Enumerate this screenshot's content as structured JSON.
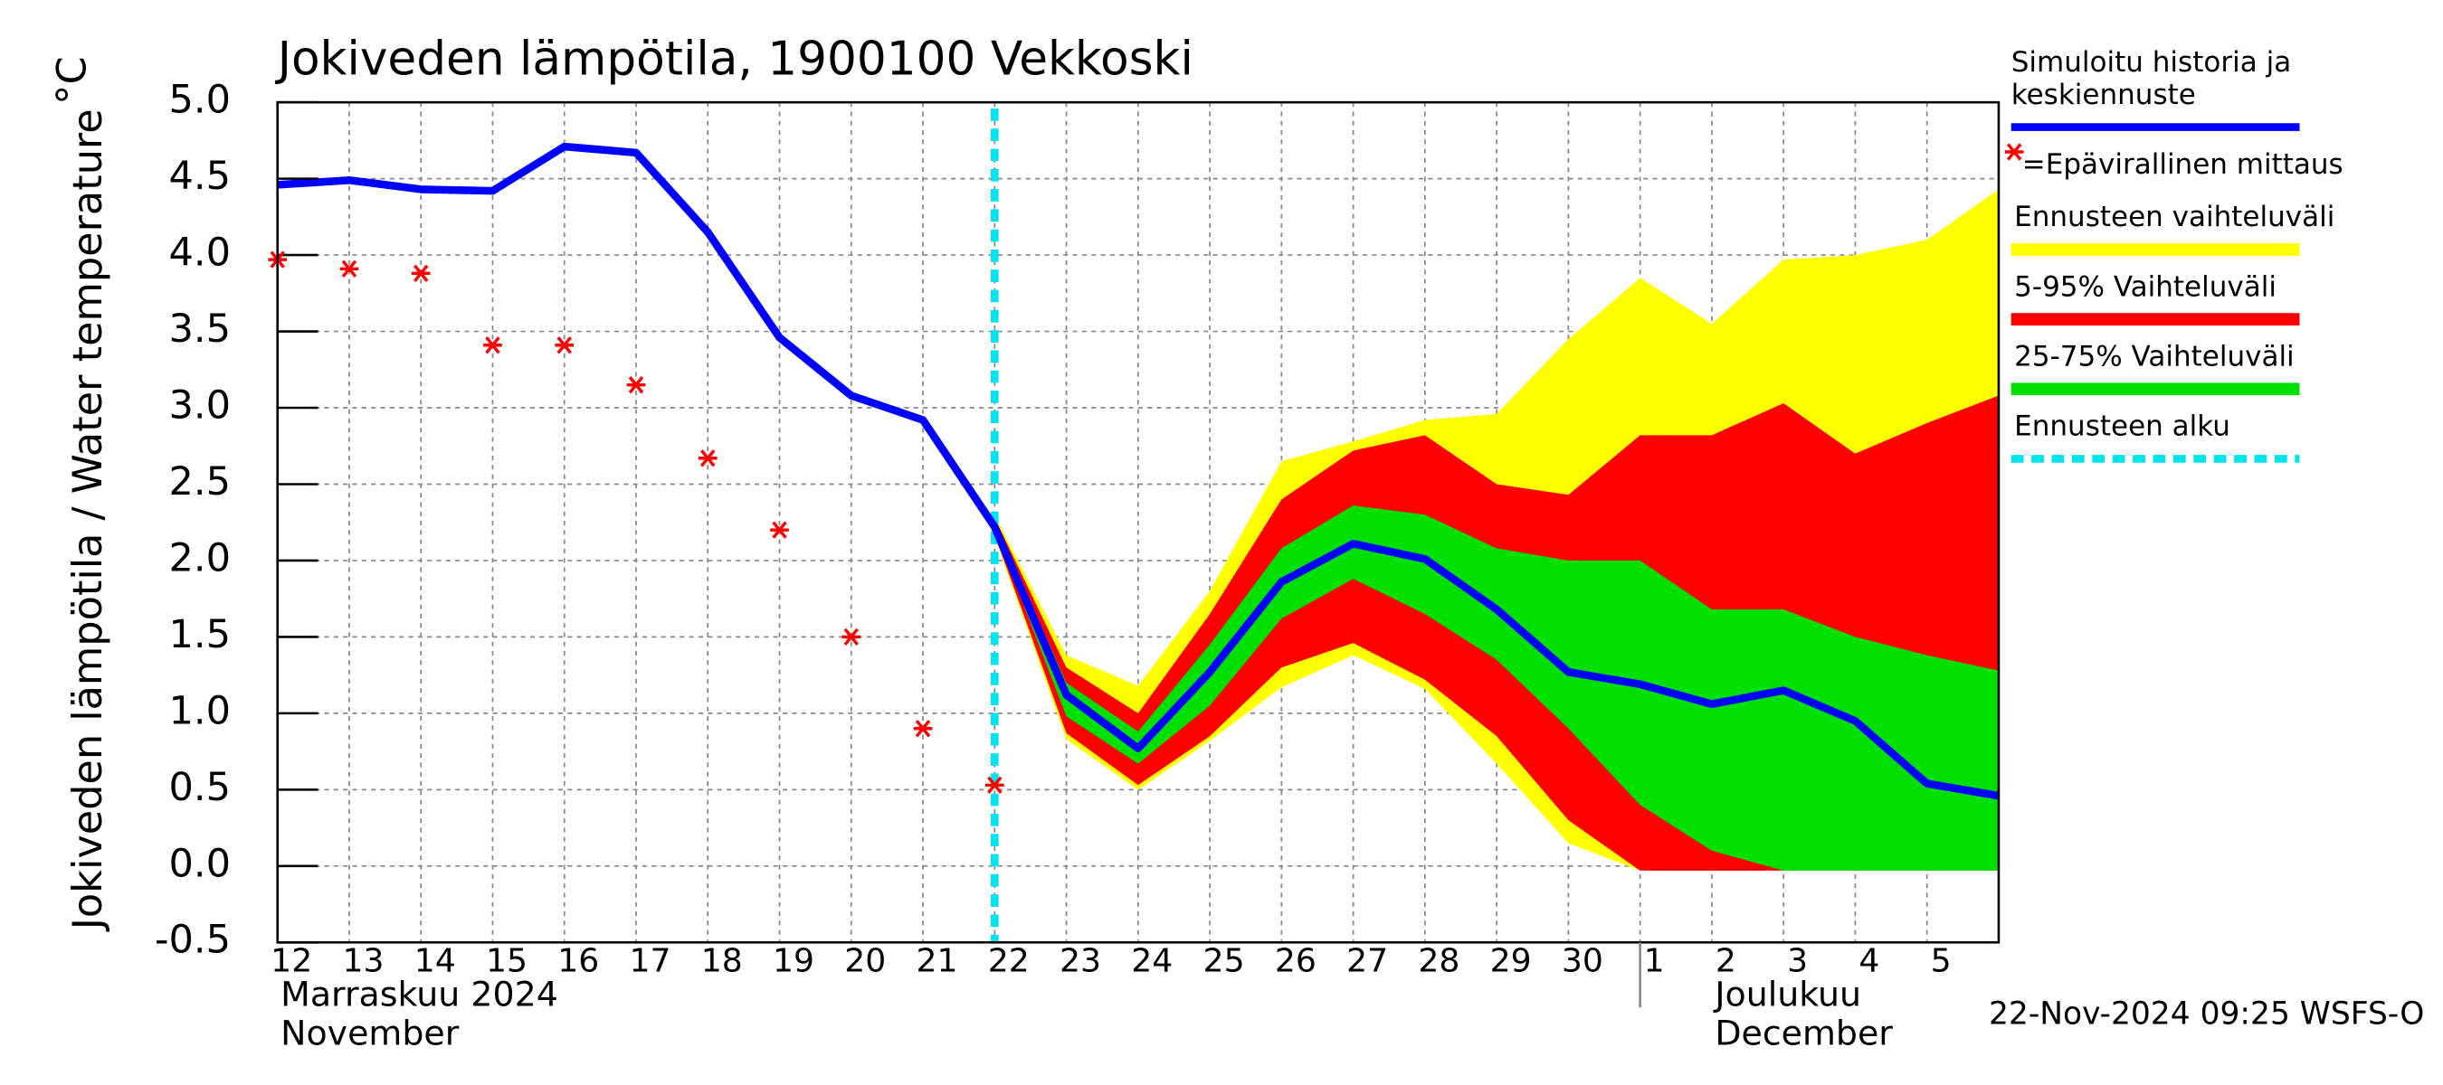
{
  "chart_data": {
    "type": "line",
    "title": "Jokiveden lämpötila, 1900100 Vekkoski",
    "y_label": "Jokiveden lämpötila / Water temperature",
    "y_unit": "°C",
    "footer": "22-Nov-2024 09:25 WSFS-O",
    "categories": [
      "12",
      "13",
      "14",
      "15",
      "16",
      "17",
      "18",
      "19",
      "20",
      "21",
      "22",
      "23",
      "24",
      "25",
      "26",
      "27",
      "28",
      "29",
      "30",
      "1",
      "2",
      "3",
      "4",
      "5",
      null
    ],
    "month_labels": [
      {
        "start": "12",
        "lines": [
          "Marraskuu 2024",
          "November"
        ]
      },
      {
        "start": "1",
        "lines": [
          "Joulukuu",
          "December"
        ]
      }
    ],
    "ylim": [
      -0.5,
      5.0
    ],
    "yticks": [
      {
        "value": -0.5,
        "label": "-0.5"
      },
      {
        "value": 0,
        "label": "0.0"
      },
      {
        "value": 0.5,
        "label": "0.5"
      },
      {
        "value": 1,
        "label": "1.0"
      },
      {
        "value": 1.5,
        "label": "1.5"
      },
      {
        "value": 2,
        "label": "2.0"
      },
      {
        "value": 2.5,
        "label": "2.5"
      },
      {
        "value": 3,
        "label": "3.0"
      },
      {
        "value": 3.5,
        "label": "3.5"
      },
      {
        "value": 4,
        "label": "4.0"
      },
      {
        "value": 4.5,
        "label": "4.5"
      },
      {
        "value": 5,
        "label": "5.0"
      }
    ],
    "grid": true,
    "bands": [
      {
        "name": "Ennusteen vaihteluväli",
        "color": "#ffff00",
        "upper": [
          null,
          null,
          null,
          null,
          null,
          null,
          null,
          null,
          null,
          null,
          2.3,
          1.38,
          1.18,
          1.8,
          2.65,
          2.78,
          2.92,
          2.96,
          3.45,
          3.85,
          3.55,
          3.97,
          4.0,
          4.1,
          4.43
        ],
        "lower": [
          null,
          null,
          null,
          null,
          null,
          null,
          null,
          null,
          null,
          null,
          2.15,
          0.83,
          0.5,
          0.82,
          1.17,
          1.38,
          1.16,
          0.67,
          0.15,
          -0.03,
          -0.03,
          -0.03,
          -0.03,
          -0.03,
          -0.03
        ]
      },
      {
        "name": "5-95% Vaihteluväli",
        "color": "#ff0000",
        "upper": [
          null,
          null,
          null,
          null,
          null,
          null,
          null,
          null,
          null,
          null,
          2.28,
          1.3,
          1.0,
          1.65,
          2.4,
          2.72,
          2.82,
          2.5,
          2.43,
          2.82,
          2.82,
          3.03,
          2.7,
          2.9,
          3.08
        ],
        "lower": [
          null,
          null,
          null,
          null,
          null,
          null,
          null,
          null,
          null,
          null,
          2.17,
          0.87,
          0.53,
          0.85,
          1.3,
          1.46,
          1.22,
          0.85,
          0.3,
          -0.03,
          -0.03,
          -0.03,
          -0.03,
          -0.03,
          -0.03
        ]
      },
      {
        "name": "25-75% Vaihteluväli",
        "color": "#00e000",
        "upper": [
          null,
          null,
          null,
          null,
          null,
          null,
          null,
          null,
          null,
          null,
          2.25,
          1.2,
          0.88,
          1.45,
          2.08,
          2.36,
          2.3,
          2.08,
          2.0,
          2.0,
          1.68,
          1.68,
          1.5,
          1.38,
          1.28
        ],
        "lower": [
          null,
          null,
          null,
          null,
          null,
          null,
          null,
          null,
          null,
          null,
          2.2,
          0.98,
          0.67,
          1.05,
          1.62,
          1.88,
          1.65,
          1.35,
          0.9,
          0.4,
          0.1,
          -0.03,
          -0.03,
          -0.03,
          -0.03
        ]
      }
    ],
    "series": [
      {
        "name": "Simuloitu historia ja keskiennuste",
        "color": "#0000ff",
        "values": [
          4.46,
          4.49,
          4.43,
          4.42,
          4.71,
          4.67,
          4.15,
          3.46,
          3.08,
          2.92,
          2.22,
          1.12,
          0.77,
          1.27,
          1.86,
          2.11,
          2.01,
          1.68,
          1.27,
          1.19,
          1.06,
          1.15,
          0.95,
          0.54,
          0.46
        ]
      }
    ],
    "measurements": {
      "name": "=Epävirallinen mittaus",
      "color": "#ff0000",
      "values": [
        3.97,
        3.91,
        3.88,
        3.41,
        3.41,
        3.15,
        2.67,
        2.2,
        1.5,
        0.9,
        0.53,
        null,
        null,
        null,
        null,
        null,
        null,
        null,
        null,
        null,
        null,
        null,
        null,
        null,
        null
      ]
    },
    "forecast_start": {
      "name": "Ennusteen alku",
      "color": "#00e5ee",
      "x": "22"
    }
  }
}
